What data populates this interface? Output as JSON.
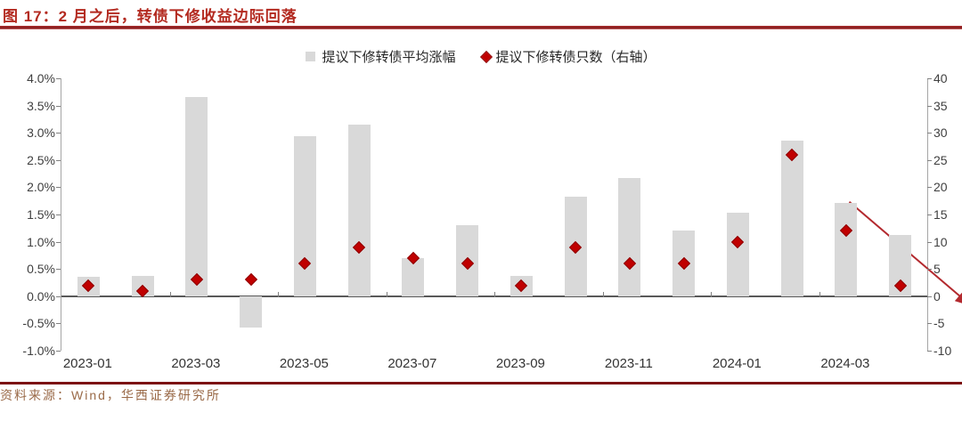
{
  "header": {
    "title": "图 17：2 月之后，转债下修收益边际回落"
  },
  "chart_data": {
    "type": "bar",
    "subtype": "combo-bar-scatter",
    "title": "图 17：2 月之后，转债下修收益边际回落",
    "categories": [
      "2023-01",
      "2023-02",
      "2023-03",
      "2023-04",
      "2023-05",
      "2023-06",
      "2023-07",
      "2023-08",
      "2023-09",
      "2023-10",
      "2023-11",
      "2023-12",
      "2024-01",
      "2024-02",
      "2024-03",
      "2024-04"
    ],
    "series": [
      {
        "name": "提议下修转债平均涨幅",
        "type": "bar",
        "axis": "left",
        "unit": "%",
        "color": "#d9d9d9",
        "values": [
          0.35,
          0.37,
          3.65,
          -0.57,
          2.93,
          3.15,
          0.7,
          1.3,
          0.37,
          1.82,
          2.17,
          1.2,
          1.53,
          2.85,
          1.72,
          1.12
        ]
      },
      {
        "name": "提议下修转债只数（右轴）",
        "type": "scatter",
        "marker": "diamond",
        "axis": "right",
        "color": "#c00000",
        "values": [
          2,
          1,
          3,
          3,
          6,
          9,
          7,
          6,
          2,
          9,
          6,
          6,
          10,
          26,
          12,
          2
        ]
      }
    ],
    "legend": [
      {
        "label": "提议下修转债平均涨幅",
        "marker": "square",
        "color": "#d9d9d9"
      },
      {
        "label": "提议下修转债只数（右轴）",
        "marker": "diamond",
        "color": "#c00000"
      }
    ],
    "legend_position": "top-center",
    "grid": false,
    "left_axis": {
      "min": -1.0,
      "max": 4.0,
      "tick_labels": [
        "4.0%",
        "3.5%",
        "3.0%",
        "2.5%",
        "2.0%",
        "1.5%",
        "1.0%",
        "0.5%",
        "0.0%",
        "-0.5%",
        "-1.0%"
      ],
      "tick_values": [
        4.0,
        3.5,
        3.0,
        2.5,
        2.0,
        1.5,
        1.0,
        0.5,
        0.0,
        -0.5,
        -1.0
      ]
    },
    "right_axis": {
      "min": -10,
      "max": 40,
      "tick_labels": [
        "40",
        "35",
        "30",
        "25",
        "20",
        "15",
        "10",
        "5",
        "0",
        "-5",
        "-10"
      ],
      "tick_values": [
        40,
        35,
        30,
        25,
        20,
        15,
        10,
        5,
        0,
        -5,
        -10
      ]
    },
    "x_tick_labels": [
      "2023-01",
      "2023-03",
      "2023-05",
      "2023-07",
      "2023-09",
      "2023-11",
      "2024-01",
      "2024-03"
    ],
    "annotation_arrow": {
      "color": "#b3292e",
      "from": {
        "x_frac": 0.84,
        "value": 3.17
      },
      "to": {
        "x_frac": 0.978,
        "value": 1.3
      }
    }
  },
  "footer": {
    "source": "资料来源：Wind，华西证券研究所"
  },
  "colors": {
    "title_red": "#b32a20",
    "bar_gray": "#d9d9d9",
    "diamond_red": "#c00000",
    "rule_dark_red": "#7d1416",
    "source_brown": "#9a6a48"
  }
}
